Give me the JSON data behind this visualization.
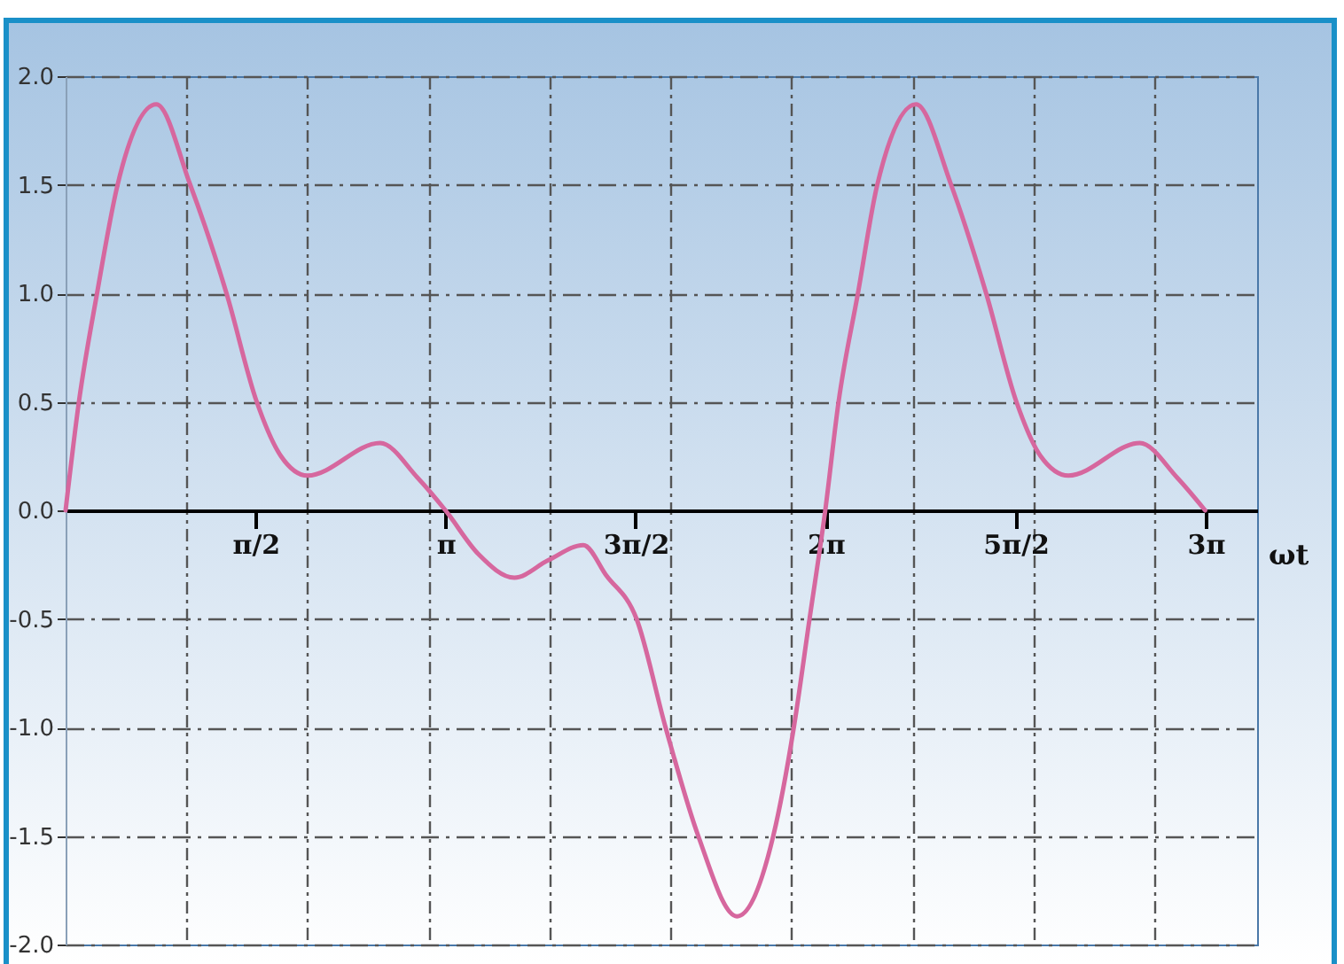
{
  "chart_data": {
    "type": "line",
    "xlabel": "ωt",
    "x": [
      0,
      0.11,
      0.26,
      0.43,
      0.75,
      1.03,
      1.33,
      1.58,
      1.78,
      2.0,
      2.6,
      2.91,
      3.14,
      3.41,
      3.71,
      3.99,
      4.28,
      4.47,
      4.72,
      4.96,
      5.23,
      5.55,
      5.85,
      6.02,
      6.15,
      6.28,
      6.39,
      6.55,
      6.71,
      7.03,
      7.32,
      7.61,
      7.86,
      8.06,
      8.29,
      8.88,
      9.19,
      9.42
    ],
    "series": [
      {
        "color": "#d6679e",
        "values": [
          0,
          0.5,
          1.0,
          1.5,
          1.87,
          1.5,
          1.0,
          0.5,
          0.25,
          0.16,
          0.31,
          0.15,
          0,
          -0.2,
          -0.31,
          -0.23,
          -0.16,
          -0.3,
          -0.5,
          -1.0,
          -1.5,
          -1.87,
          -1.5,
          -1.0,
          -0.5,
          0,
          0.5,
          1.0,
          1.5,
          1.87,
          1.5,
          1.0,
          0.5,
          0.25,
          0.16,
          0.31,
          0.15,
          0
        ]
      }
    ],
    "xlim": [
      0,
      9.85
    ],
    "ylim": [
      -2,
      2
    ],
    "xticks": [
      {
        "value": 1,
        "label": null
      },
      {
        "value": 1.5708,
        "label": "π/2"
      },
      {
        "value": 2,
        "label": null
      },
      {
        "value": 3,
        "label": null
      },
      {
        "value": 3.1416,
        "label": "π"
      },
      {
        "value": 4,
        "label": null
      },
      {
        "value": 4.7124,
        "label": "3π/2"
      },
      {
        "value": 5,
        "label": null
      },
      {
        "value": 6,
        "label": null
      },
      {
        "value": 6.2832,
        "label": "2π"
      },
      {
        "value": 7,
        "label": null
      },
      {
        "value": 7.854,
        "label": "5π/2"
      },
      {
        "value": 8,
        "label": null
      },
      {
        "value": 9,
        "label": null
      },
      {
        "value": 9.4248,
        "label": "3π"
      }
    ],
    "yticks": [
      {
        "value": -2,
        "label": "-2.0"
      },
      {
        "value": -1.5,
        "label": "-1.5"
      },
      {
        "value": -1,
        "label": "-1.0"
      },
      {
        "value": -0.5,
        "label": "-0.5"
      },
      {
        "value": 0,
        "label": "0.0"
      },
      {
        "value": 0.5,
        "label": "0.5"
      },
      {
        "value": 1,
        "label": "1.0"
      },
      {
        "value": 1.5,
        "label": "1.5"
      },
      {
        "value": 2,
        "label": "2.0"
      }
    ],
    "grid": true,
    "line_style": "solid",
    "marker": "none"
  }
}
